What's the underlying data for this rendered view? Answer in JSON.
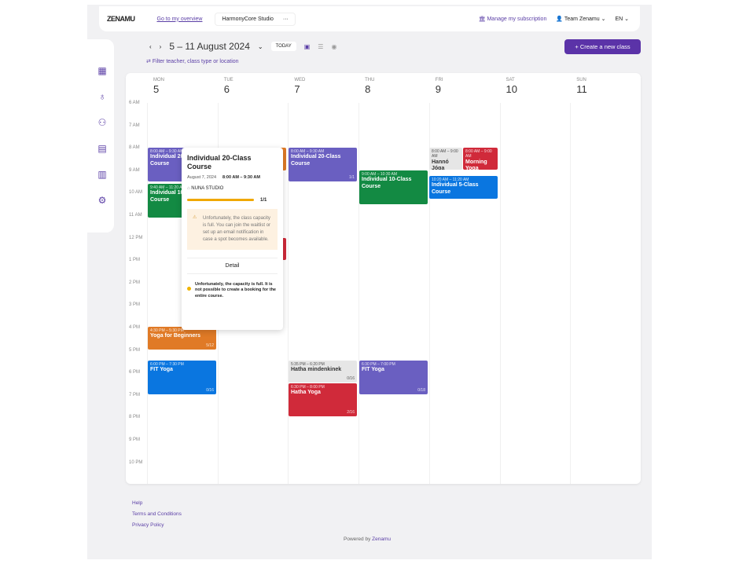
{
  "header": {
    "logo": "ZENAMU",
    "overview_link": "Go to my overview",
    "studio": "HarmonyCore Studio",
    "studio_more": "···",
    "subscription": "Manage my subscription",
    "team": "Team Zenamu",
    "language": "EN"
  },
  "toolbar": {
    "date_range": "5 – 11 August 2024",
    "today": "TODAY",
    "filter": "Filter teacher, class type or location",
    "create": "+ Create a new class"
  },
  "sidebar": {
    "icons": [
      "calendar-icon",
      "lotus-icon",
      "users-icon",
      "document-icon",
      "analytics-icon",
      "settings-icon"
    ]
  },
  "days": [
    {
      "name": "MON",
      "num": "5"
    },
    {
      "name": "TUE",
      "num": "6"
    },
    {
      "name": "WED",
      "num": "7"
    },
    {
      "name": "THU",
      "num": "8"
    },
    {
      "name": "FRI",
      "num": "9"
    },
    {
      "name": "SAT",
      "num": "10"
    },
    {
      "name": "SUN",
      "num": "11"
    }
  ],
  "hours": [
    "6 AM",
    "7 AM",
    "8 AM",
    "9 AM",
    "10 AM",
    "11 AM",
    "12 PM",
    "1 PM",
    "2 PM",
    "3 PM",
    "4 PM",
    "5 PM",
    "6 PM",
    "7 PM",
    "8 PM",
    "9 PM",
    "10 PM"
  ],
  "events": [
    {
      "time": "8:00 AM – 9:30 AM",
      "title": "Individual 20-Class Course",
      "count": "",
      "color": "#6a5fc1"
    },
    {
      "time": "9:40 AM – 11:20 AM",
      "title": "Individual 10-Class Course",
      "count": "",
      "color": "#138a43"
    },
    {
      "time": "4:30 PM – 5:30 PM",
      "title": "Yoga for Beginners",
      "count": "5/12",
      "color": "#e07a26"
    },
    {
      "time": "6:00 PM – 7:30 PM",
      "title": "FIT Yoga",
      "count": "0/16",
      "color": "#0a76e0"
    },
    {
      "time": "",
      "title": "",
      "count": "",
      "color": "#e07a26"
    },
    {
      "time": "",
      "title": "",
      "count": "",
      "color": "#d02a3a"
    },
    {
      "time": "8:00 AM – 9:30 AM",
      "title": "Individual 20-Class Course",
      "count": "1/1",
      "color": "#6a5fc1"
    },
    {
      "time": "5:35 PM – 6:20 PM",
      "title": "Hatha mindenkinek",
      "count": "0/16",
      "color": "#e6e6e6"
    },
    {
      "time": "6:30 PM – 8:00 PM",
      "title": "Hatha Yoga",
      "count": "2/16",
      "color": "#d02a3a"
    },
    {
      "time": "9:00 AM – 10:30 AM",
      "title": "Individual 10-Class Course",
      "count": "",
      "color": "#138a43"
    },
    {
      "time": "6:30 PM – 7:00 PM",
      "title": "FIT Yoga",
      "count": "0/18",
      "color": "#6a5fc1"
    },
    {
      "time": "8:00 AM – 9:00 AM",
      "title": "Hannó Jóga",
      "count": "",
      "color": "#e6e6e6"
    },
    {
      "time": "8:00 AM – 9:00 AM",
      "title": "Morning Yoga",
      "count": "",
      "color": "#d02a3a"
    },
    {
      "time": "10:20 AM – 11:20 AM",
      "title": "Individual 5-Class Course",
      "count": "",
      "color": "#0a76e0"
    }
  ],
  "popup": {
    "title": "Individual 20-Class Course",
    "date": "August 7, 2024",
    "time": "8:00 AM – 9:30 AM",
    "location": "NUNA STUDIO",
    "capacity": "1/1",
    "capacity_fraction": 1,
    "warning": "Unfortunately, the class capacity is full. You can join the waitlist or set up an email notification in case a spot becomes available.",
    "detail": "Detail",
    "full_notice": "Unfortunately, the capacity is full. It is not possible to create a booking for the entire course."
  },
  "footer": {
    "links": [
      "Help",
      "Terms and Conditions",
      "Privacy Policy"
    ],
    "powered": "Powered by",
    "brand": "Zenamu"
  }
}
